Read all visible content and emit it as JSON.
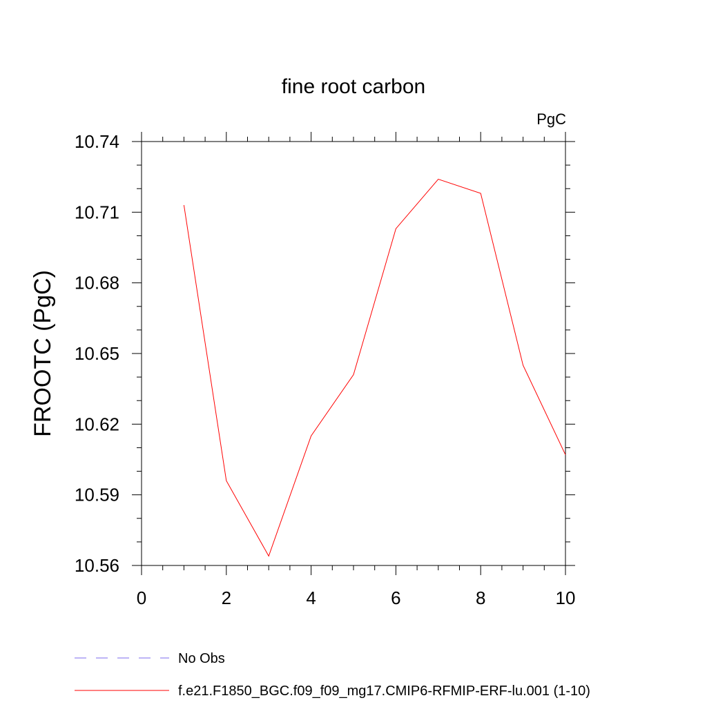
{
  "chart_data": {
    "type": "line",
    "title": "fine root carbon",
    "units_label": "PgC",
    "ylabel": "FROOTC  (PgC)",
    "xlabel": "",
    "xlim": [
      0,
      10
    ],
    "ylim": [
      10.56,
      10.74
    ],
    "x_ticks": [
      0,
      2,
      4,
      6,
      8,
      10
    ],
    "x_tick_labels": [
      "0",
      "2",
      "4",
      "6",
      "8",
      "10"
    ],
    "y_ticks": [
      10.56,
      10.59,
      10.62,
      10.65,
      10.68,
      10.71,
      10.74
    ],
    "y_tick_labels": [
      "10.56",
      "10.59",
      "10.62",
      "10.65",
      "10.68",
      "10.71",
      "10.74"
    ],
    "grid": false,
    "legend_placement": "bottom",
    "series": [
      {
        "name": "f.e21.F1850_BGC.f09_f09_mg17.CMIP6-RFMIP-ERF-lu.001 (1-10)",
        "color": "#ff0000",
        "dash": "solid",
        "x": [
          1,
          2,
          3,
          4,
          5,
          6,
          7,
          8,
          9,
          10
        ],
        "y": [
          10.713,
          10.596,
          10.564,
          10.615,
          10.641,
          10.703,
          10.724,
          10.718,
          10.645,
          10.607
        ]
      }
    ],
    "legend": [
      {
        "label": "No Obs",
        "color": "#7b68ee",
        "dash": "dashed"
      },
      {
        "label": "f.e21.F1850_BGC.f09_f09_mg17.CMIP6-RFMIP-ERF-lu.001 (1-10)",
        "color": "#ff0000",
        "dash": "solid"
      }
    ]
  }
}
